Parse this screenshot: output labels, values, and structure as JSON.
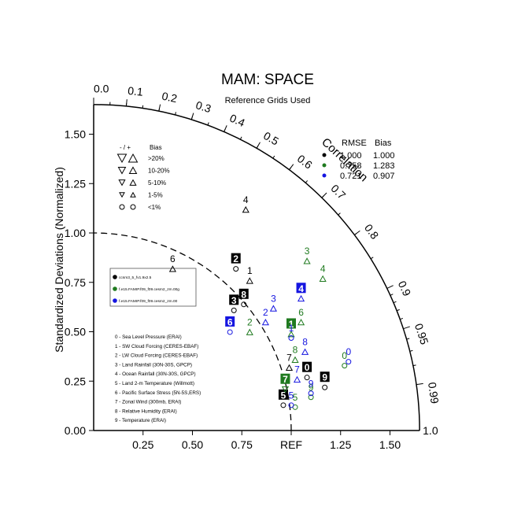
{
  "title": "MAM: SPACE",
  "subtitle": "Reference Grids Used",
  "chart_data": {
    "type": "scatter",
    "title": "MAM: SPACE",
    "subtitle": "Reference Grids Used",
    "ylabel": "Standardized Deviations (Normalized)",
    "angular_label": "Correlation",
    "ref_label": "REF",
    "xlim": [
      0,
      1.65
    ],
    "ylim": [
      0,
      1.65
    ],
    "x_ticks": [
      "0.25",
      "0.50",
      "0.75",
      "REF",
      "1.25",
      "1.50"
    ],
    "x_tick_values": [
      0.25,
      0.5,
      0.75,
      1.0,
      1.25,
      1.5
    ],
    "y_ticks": [
      "0.00",
      "0.25",
      "0.50",
      "0.75",
      "1.00",
      "1.25",
      "1.50"
    ],
    "y_tick_values": [
      0,
      0.25,
      0.5,
      0.75,
      1.0,
      1.25,
      1.5
    ],
    "corr_ticks": [
      "0.0",
      "0.1",
      "0.2",
      "0.3",
      "0.4",
      "0.5",
      "0.6",
      "0.7",
      "0.8",
      "0.9",
      "0.95",
      "0.99",
      "1.0"
    ],
    "corr_tick_values": [
      0,
      0.1,
      0.2,
      0.3,
      0.4,
      0.5,
      0.6,
      0.7,
      0.8,
      0.9,
      0.95,
      0.99,
      1.0
    ],
    "ref_circle_radius": 1.0,
    "outer_radius": 1.65,
    "bias_legend": {
      "header": "- / +",
      "title": "Bias",
      "rows": [
        ">20%",
        "10-20%",
        "5-10%",
        "1-5%",
        "<1%"
      ]
    },
    "stats_legend": {
      "headers": [
        "RMSE",
        "Bias"
      ],
      "rows": [
        {
          "rmse": "1.000",
          "bias": "1.000",
          "color": "#000000"
        },
        {
          "rmse": "0.758",
          "bias": "1.283",
          "color": "#1f7a1f"
        },
        {
          "rmse": "0.721",
          "bias": "0.907",
          "color": "#1515e0"
        }
      ]
    },
    "series": [
      {
        "name": "ccsm3_5_fv1.9x2.5",
        "color": "#000000"
      },
      {
        "name": "f.e15.FAMIP.f09_f09.cesm2_zm.00g",
        "color": "#1f7a1f"
      },
      {
        "name": "f.e15.FAMIP.f09_f09.cesm2_zm.00",
        "color": "#1515e0"
      }
    ],
    "variables": [
      "0 - Sea Level Pressure (ERAI)",
      "1 - SW Cloud Forcing (CERES-EBAF)",
      "2 - LW Cloud Forcing (CERES-EBAF)",
      "3 - Land Rainfall (30N-30S, GPCP)",
      "4 - Ocean Rainfall (30N-30S, GPCP)",
      "5 - Land 2-m Temperature (Willmott)",
      "6 - Pacific Surface Stress (5N-5S,ERS)",
      "7 - Zonal Wind (300mb, ERAI)",
      "8 - Relative Humidity (ERAI)",
      "9 - Temperature (ERAI)"
    ],
    "points": [
      {
        "s": 0,
        "v": "0",
        "x": 1.08,
        "y": 0.32,
        "box": true,
        "marker": "circle"
      },
      {
        "s": 0,
        "v": "1",
        "x": 0.79,
        "y": 0.81,
        "box": false,
        "marker": "up"
      },
      {
        "s": 0,
        "v": "2",
        "x": 0.72,
        "y": 0.87,
        "box": true,
        "marker": "circle"
      },
      {
        "s": 0,
        "v": "3",
        "x": 0.71,
        "y": 0.66,
        "box": true,
        "marker": "circle"
      },
      {
        "s": 0,
        "v": "4",
        "x": 0.77,
        "y": 1.17,
        "box": false,
        "marker": "up"
      },
      {
        "s": 0,
        "v": "5",
        "x": 0.96,
        "y": 0.18,
        "box": true,
        "marker": "circle"
      },
      {
        "s": 0,
        "v": "6",
        "x": 0.4,
        "y": 0.87,
        "box": false,
        "marker": "up"
      },
      {
        "s": 0,
        "v": "7",
        "x": 0.99,
        "y": 0.37,
        "box": false,
        "marker": "up"
      },
      {
        "s": 0,
        "v": "8",
        "x": 0.76,
        "y": 0.69,
        "box": true,
        "marker": "circle"
      },
      {
        "s": 0,
        "v": "9",
        "x": 1.17,
        "y": 0.27,
        "box": true,
        "marker": "circle"
      },
      {
        "s": 1,
        "v": "0",
        "x": 1.27,
        "y": 0.38,
        "box": false,
        "marker": "circle"
      },
      {
        "s": 1,
        "v": "1",
        "x": 1.0,
        "y": 0.54,
        "box": true,
        "marker": "up"
      },
      {
        "s": 1,
        "v": "2",
        "x": 0.79,
        "y": 0.55,
        "box": false,
        "marker": "up"
      },
      {
        "s": 1,
        "v": "3",
        "x": 1.08,
        "y": 0.91,
        "box": false,
        "marker": "up"
      },
      {
        "s": 1,
        "v": "4",
        "x": 1.16,
        "y": 0.82,
        "box": false,
        "marker": "up"
      },
      {
        "s": 1,
        "v": "5",
        "x": 1.02,
        "y": 0.17,
        "box": false,
        "marker": "circle"
      },
      {
        "s": 1,
        "v": "6",
        "x": 1.05,
        "y": 0.6,
        "box": false,
        "marker": "up"
      },
      {
        "s": 1,
        "v": "7",
        "x": 0.97,
        "y": 0.26,
        "box": true,
        "marker": "down"
      },
      {
        "s": 1,
        "v": "8",
        "x": 1.02,
        "y": 0.41,
        "box": false,
        "marker": "up"
      },
      {
        "s": 1,
        "v": "9",
        "x": 1.1,
        "y": 0.22,
        "box": false,
        "marker": "circle"
      },
      {
        "s": 2,
        "v": "0",
        "x": 1.29,
        "y": 0.4,
        "box": false,
        "marker": "circle"
      },
      {
        "s": 2,
        "v": "1",
        "x": 1.0,
        "y": 0.52,
        "box": false,
        "marker": "circle"
      },
      {
        "s": 2,
        "v": "2",
        "x": 0.87,
        "y": 0.6,
        "box": false,
        "marker": "up"
      },
      {
        "s": 2,
        "v": "3",
        "x": 0.91,
        "y": 0.67,
        "box": false,
        "marker": "up"
      },
      {
        "s": 2,
        "v": "4",
        "x": 1.05,
        "y": 0.72,
        "box": true,
        "marker": "up"
      },
      {
        "s": 2,
        "v": "5",
        "x": 1.0,
        "y": 0.18,
        "box": false,
        "marker": "circle"
      },
      {
        "s": 2,
        "v": "6",
        "x": 0.69,
        "y": 0.55,
        "box": true,
        "marker": "circle"
      },
      {
        "s": 2,
        "v": "7",
        "x": 1.03,
        "y": 0.31,
        "box": false,
        "marker": "up"
      },
      {
        "s": 2,
        "v": "8",
        "x": 1.07,
        "y": 0.45,
        "box": false,
        "marker": "up"
      },
      {
        "s": 2,
        "v": "9",
        "x": 1.1,
        "y": 0.24,
        "box": false,
        "marker": "circle"
      }
    ]
  }
}
